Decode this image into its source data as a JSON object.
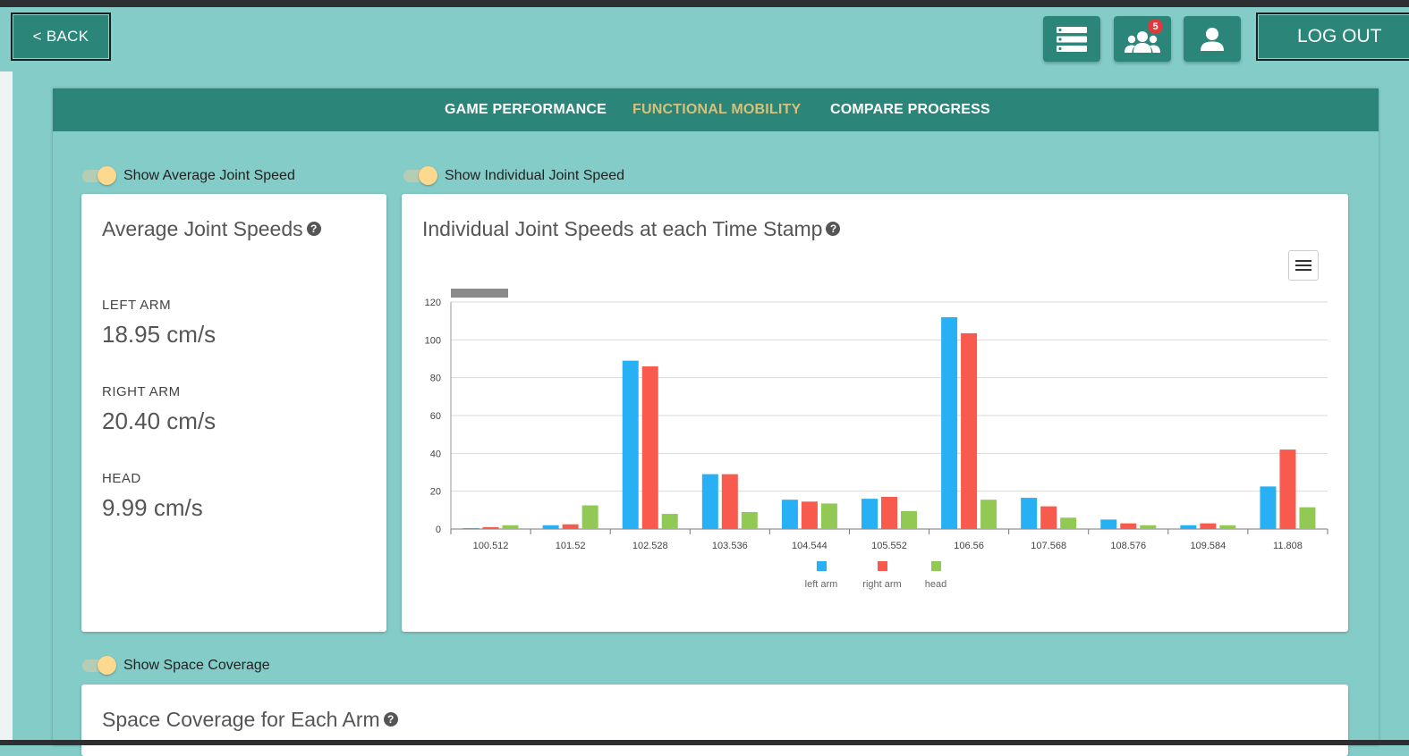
{
  "header": {
    "back_label": "< BACK",
    "logout_label": "LOG OUT",
    "notification_count": "5"
  },
  "tabs": [
    {
      "label": "GAME PERFORMANCE",
      "active": false
    },
    {
      "label": "FUNCTIONAL MOBILITY",
      "active": true
    },
    {
      "label": "COMPARE PROGRESS",
      "active": false
    }
  ],
  "toggles": {
    "average": "Show Average Joint Speed",
    "individual": "Show Individual Joint Speed",
    "space": "Show Space Coverage"
  },
  "average_card": {
    "title": "Average Joint Speeds",
    "stats": [
      {
        "label": "LEFT ARM",
        "value": "18.95 cm/s"
      },
      {
        "label": "RIGHT ARM",
        "value": "20.40 cm/s"
      },
      {
        "label": "HEAD",
        "value": "9.99 cm/s"
      }
    ]
  },
  "individual_card": {
    "title": "Individual Joint Speeds at each Time Stamp"
  },
  "space_card": {
    "title": "Space Coverage for Each Arm"
  },
  "colors": {
    "teal_dark": "#2b8579",
    "teal_light": "#84ccc8",
    "tab_active": "#d6c17a",
    "left_arm": "#27b0f4",
    "right_arm": "#f85a4d",
    "head": "#92c955"
  },
  "chart_data": {
    "type": "bar",
    "categories": [
      "100.512",
      "101.52",
      "102.528",
      "103.536",
      "104.544",
      "105.552",
      "106.56",
      "107.568",
      "108.576",
      "109.584",
      "11.808"
    ],
    "series": [
      {
        "name": "left arm",
        "color": "#27b0f4",
        "values": [
          0.5,
          2,
          89,
          29,
          15.5,
          16,
          112,
          16.5,
          5,
          2,
          22.5
        ]
      },
      {
        "name": "right arm",
        "color": "#f85a4d",
        "values": [
          1,
          2.5,
          86,
          29,
          14.5,
          17,
          103.5,
          12,
          3,
          3,
          42
        ]
      },
      {
        "name": "head",
        "color": "#92c955",
        "values": [
          2,
          12.5,
          8,
          9,
          13.5,
          9.5,
          15.5,
          6,
          2,
          2,
          11.5
        ]
      }
    ],
    "ylim": [
      0,
      120
    ],
    "yticks": [
      "0",
      "20",
      "40",
      "60",
      "80",
      "100",
      "120"
    ],
    "grid": true,
    "legend_position": "bottom"
  }
}
